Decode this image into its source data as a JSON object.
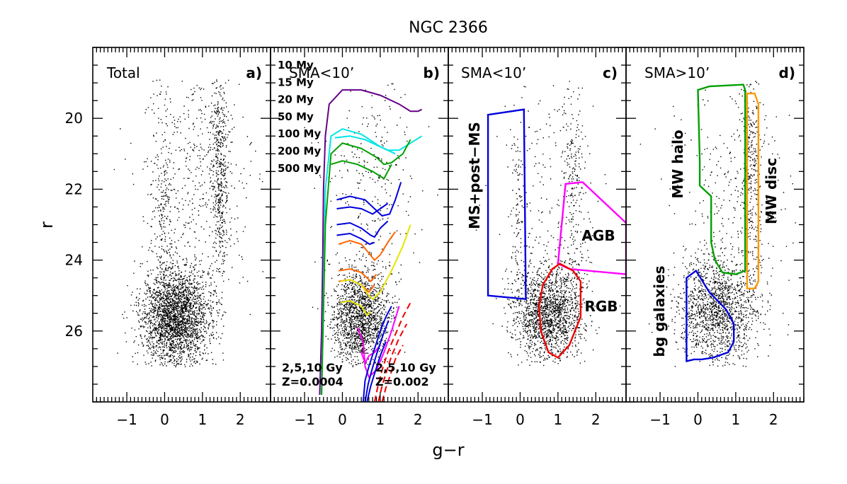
{
  "chart_data": {
    "type": "scatter",
    "title": "NGC 2366",
    "xlabel": "g−r",
    "ylabel": "r",
    "xlim": [
      -1.9,
      2.8
    ],
    "ylim": [
      28,
      18
    ],
    "x_ticks": [
      "−1",
      "0",
      "1",
      "2"
    ],
    "y_ticks": [
      "20",
      "22",
      "24",
      "26"
    ],
    "x_tick_values": [
      -1,
      0,
      1,
      2
    ],
    "y_tick_values": [
      20,
      22,
      24,
      26
    ],
    "panels": [
      {
        "id": "a",
        "region": "Total",
        "label": "a)",
        "points": [],
        "point_clouds": [
          {
            "name": "main_body",
            "x_mean": 0.3,
            "x_sd": 0.45,
            "y_mean": 25.6,
            "y_sd": 0.7,
            "count": 2600
          },
          {
            "name": "upper_ms",
            "x_mean": -0.05,
            "x_sd": 0.15,
            "y_mean": 22.5,
            "y_sd": 1.7,
            "count": 250
          },
          {
            "name": "red_plume",
            "x_mean": 1.45,
            "x_sd": 0.12,
            "y_mean": 21.5,
            "y_sd": 1.6,
            "count": 500
          },
          {
            "name": "sparse_field",
            "x_mean": 0.8,
            "x_sd": 0.7,
            "y_mean": 21.5,
            "y_sd": 1.8,
            "count": 450
          }
        ]
      },
      {
        "id": "b",
        "region": "SMA<10’",
        "label": "b)",
        "points": [],
        "point_clouds": [
          {
            "name": "main_body",
            "x_mean": 0.45,
            "x_sd": 0.38,
            "y_mean": 25.6,
            "y_sd": 0.65,
            "count": 1600
          },
          {
            "name": "sparse_field",
            "x_mean": 0.7,
            "x_sd": 0.6,
            "y_mean": 22.0,
            "y_sd": 1.8,
            "count": 300
          }
        ],
        "legend": [
          {
            "label": "10 My",
            "color": "#660088"
          },
          {
            "label": "15 My",
            "color": "#00e5e5"
          },
          {
            "label": "20 My",
            "color": "#00a000"
          },
          {
            "label": "50 My",
            "color": "#0000dd"
          },
          {
            "label": "100 My",
            "color": "#ff6600"
          },
          {
            "label": "200 My",
            "color": "#e5e500"
          },
          {
            "label": "500 My",
            "color": "#ff00ff"
          }
        ],
        "isochrones": [
          {
            "name": "10 My",
            "color": "#660088",
            "x": [
              -0.6,
              -0.55,
              -0.52,
              -0.5,
              -0.45,
              -0.35,
              0.0,
              0.5,
              1.0,
              1.5,
              1.8,
              2.0,
              2.1
            ],
            "y": [
              27.8,
              26.0,
              24.0,
              22.0,
              20.5,
              19.6,
              19.2,
              19.2,
              19.35,
              19.6,
              19.8,
              19.8,
              19.75
            ]
          },
          {
            "name": "15 My",
            "color": "#00e5e5",
            "x": [
              -0.55,
              -0.45,
              -0.3,
              0.0,
              0.5,
              1.0,
              1.2,
              1.5,
              1.8,
              2.1
            ],
            "y": [
              27.8,
              22.0,
              20.5,
              20.3,
              20.45,
              20.8,
              20.9,
              20.9,
              20.7,
              20.5
            ]
          },
          {
            "name": "15 My (loop)",
            "color": "#00e5e5",
            "x": [
              -0.2,
              0.2,
              0.6,
              1.0,
              1.4
            ],
            "y": [
              20.55,
              20.5,
              20.6,
              20.8,
              21.0
            ]
          },
          {
            "name": "20 My",
            "color": "#00a000",
            "x": [
              -0.55,
              -0.45,
              -0.3,
              0.0,
              0.5,
              0.9,
              1.1,
              1.3,
              1.6,
              1.8
            ],
            "y": [
              27.8,
              23.0,
              21.0,
              20.7,
              20.85,
              21.1,
              21.3,
              21.25,
              21.0,
              20.6
            ]
          },
          {
            "name": "20 My (loop)",
            "color": "#00a000",
            "x": [
              -0.3,
              0.0,
              0.4,
              0.8,
              1.1,
              1.3
            ],
            "y": [
              21.3,
              21.2,
              21.3,
              21.5,
              21.7,
              21.3
            ]
          },
          {
            "name": "50 My (a)",
            "color": "#0000dd",
            "x": [
              -0.15,
              0.2,
              0.6,
              0.9,
              1.05,
              1.25,
              1.4,
              1.55
            ],
            "y": [
              22.3,
              22.2,
              22.3,
              22.6,
              22.75,
              22.7,
              22.3,
              21.8
            ]
          },
          {
            "name": "50 My (b)",
            "color": "#0000dd",
            "x": [
              -0.15,
              0.2,
              0.5,
              0.8,
              1.0,
              1.2
            ],
            "y": [
              22.55,
              22.5,
              22.55,
              22.7,
              22.55,
              22.4
            ]
          },
          {
            "name": "50 My (c)",
            "color": "#0000dd",
            "x": [
              -0.15,
              0.2,
              0.5,
              0.75,
              0.85,
              1.0,
              1.2
            ],
            "y": [
              23.0,
              22.95,
              23.1,
              23.3,
              23.35,
              23.1,
              22.9
            ]
          },
          {
            "name": "50 My (d)",
            "color": "#0000dd",
            "x": [
              -0.15,
              0.2,
              0.5,
              0.72,
              0.85
            ],
            "y": [
              23.3,
              23.25,
              23.4,
              23.55,
              23.5
            ]
          },
          {
            "name": "100 My (a)",
            "color": "#ff6600",
            "x": [
              -0.1,
              0.2,
              0.5,
              0.7,
              0.85,
              1.0,
              1.2,
              1.4
            ],
            "y": [
              23.55,
              23.45,
              23.55,
              23.8,
              24.0,
              23.85,
              23.5,
              23.2
            ]
          },
          {
            "name": "100 My (b)",
            "color": "#ff6600",
            "x": [
              -0.1,
              0.2,
              0.5,
              0.75,
              0.9
            ],
            "y": [
              24.3,
              24.25,
              24.35,
              24.6,
              24.4
            ]
          },
          {
            "name": "100 My (c)",
            "color": "#ff6600",
            "x": [
              -0.1,
              0.2,
              0.5,
              0.7,
              0.85
            ],
            "y": [
              24.6,
              24.55,
              24.7,
              24.9,
              24.7
            ]
          },
          {
            "name": "200 My (a)",
            "color": "#e5e500",
            "x": [
              -0.05,
              0.2,
              0.5,
              0.7,
              0.8,
              1.0,
              1.3,
              1.6,
              1.8
            ],
            "y": [
              24.6,
              24.55,
              24.7,
              25.0,
              25.1,
              24.9,
              24.3,
              23.6,
              23.0
            ]
          },
          {
            "name": "200 My (b)",
            "color": "#e5e500",
            "x": [
              -0.05,
              0.2,
              0.5,
              0.65,
              0.75
            ],
            "y": [
              25.2,
              25.15,
              25.3,
              25.55,
              25.45
            ]
          },
          {
            "name": "500 My (a)",
            "color": "#ff00ff",
            "x": [
              0.4,
              0.55,
              0.6,
              0.7,
              0.9,
              1.1,
              1.3,
              1.5
            ],
            "y": [
              25.9,
              26.3,
              27.0,
              27.3,
              27.1,
              26.6,
              26.0,
              25.3
            ]
          },
          {
            "name": "500 My (b)",
            "color": "#ff00ff",
            "x": [
              0.5,
              0.6,
              0.7,
              0.85,
              1.0
            ],
            "y": [
              26.6,
              26.9,
              26.7,
              26.6,
              26.4
            ]
          },
          {
            "name": "2,5,10 Gy Z=0.0004 (a)",
            "color": "#0000dd",
            "x": [
              0.55,
              0.6,
              0.7,
              0.85,
              1.0,
              1.15,
              1.3
            ],
            "y": [
              28.0,
              27.4,
              27.0,
              26.5,
              26.0,
              25.6,
              25.3
            ]
          },
          {
            "name": "2,5,10 Gy Z=0.0004 (b)",
            "color": "#0000dd",
            "x": [
              0.6,
              0.68,
              0.78,
              0.92,
              1.08,
              1.22
            ],
            "y": [
              28.0,
              27.5,
              27.1,
              26.6,
              26.1,
              25.7
            ]
          },
          {
            "name": "2,5,10 Gy Z=0.0004 (c)",
            "color": "#0000dd",
            "x": [
              0.65,
              0.75,
              0.85,
              1.0,
              1.15
            ],
            "y": [
              28.0,
              27.55,
              27.2,
              26.7,
              26.3
            ]
          },
          {
            "name": "2,5,10 Gy Z=0.002 (a)",
            "color": "#ee0000",
            "dashed": true,
            "x": [
              0.85,
              0.95,
              1.05,
              1.2,
              1.4,
              1.6,
              1.8
            ],
            "y": [
              28.0,
              27.5,
              27.1,
              26.6,
              26.1,
              25.6,
              25.2
            ]
          },
          {
            "name": "2,5,10 Gy Z=0.002 (b)",
            "color": "#ee0000",
            "dashed": true,
            "x": [
              0.95,
              1.05,
              1.15,
              1.3,
              1.5,
              1.7
            ],
            "y": [
              28.0,
              27.55,
              27.2,
              26.7,
              26.2,
              25.8
            ]
          },
          {
            "name": "2,5,10 Gy Z=0.002 (c)",
            "color": "#ee0000",
            "dashed": true,
            "x": [
              1.05,
              1.15,
              1.25,
              1.4,
              1.6
            ],
            "y": [
              28.0,
              27.6,
              27.3,
              26.8,
              26.4
            ]
          }
        ],
        "notes": [
          {
            "lines": [
              "2,5,10 Gy",
              "Z=0.0004"
            ],
            "color": "#0000dd"
          },
          {
            "lines": [
              "2,5,10 Gy",
              "Z=0.002"
            ],
            "color": "#ee0000"
          }
        ]
      },
      {
        "id": "c",
        "region": "SMA<10’",
        "label": "c)",
        "points": [],
        "point_clouds": [
          {
            "name": "main_body",
            "x_mean": 0.7,
            "x_sd": 0.45,
            "y_mean": 25.5,
            "y_sd": 0.65,
            "count": 1700
          },
          {
            "name": "upper_ms",
            "x_mean": -0.05,
            "x_sd": 0.12,
            "y_mean": 22.5,
            "y_sd": 1.6,
            "count": 120
          },
          {
            "name": "red_plume",
            "x_mean": 1.4,
            "x_sd": 0.15,
            "y_mean": 21.8,
            "y_sd": 1.5,
            "count": 200
          },
          {
            "name": "sparse_field",
            "x_mean": 0.9,
            "x_sd": 0.7,
            "y_mean": 22.5,
            "y_sd": 1.7,
            "count": 200
          }
        ],
        "regions": [
          {
            "label": "MS+post−MS",
            "color": "#0000dd",
            "x": [
              -0.85,
              0.1,
              0.15,
              -0.85
            ],
            "y": [
              19.9,
              19.75,
              25.1,
              25.0
            ]
          },
          {
            "label": "AGB",
            "color": "#ff00ff",
            "x": [
              1.0,
              1.2,
              1.65,
              2.8,
              2.8,
              1.3,
              1.0
            ],
            "y": [
              24.1,
              21.85,
              21.8,
              22.95,
              24.4,
              24.25,
              24.1
            ]
          },
          {
            "label": "RGB",
            "color": "#ee0000",
            "x": [
              1.05,
              1.4,
              1.6,
              1.6,
              1.3,
              1.0,
              0.75,
              0.55,
              0.5,
              0.6,
              0.85,
              1.05
            ],
            "y": [
              24.1,
              24.3,
              24.6,
              25.6,
              26.4,
              26.75,
              26.6,
              26.0,
              25.3,
              24.7,
              24.25,
              24.1
            ]
          }
        ]
      },
      {
        "id": "d",
        "region": "SMA>10’",
        "label": "d)",
        "points": [],
        "point_clouds": [
          {
            "name": "main_body",
            "x_mean": 0.5,
            "x_sd": 0.55,
            "y_mean": 25.4,
            "y_sd": 0.75,
            "count": 1500
          },
          {
            "name": "red_plume",
            "x_mean": 1.4,
            "x_sd": 0.15,
            "y_mean": 21.5,
            "y_sd": 1.6,
            "count": 300
          },
          {
            "name": "sparse_field",
            "x_mean": 0.9,
            "x_sd": 0.75,
            "y_mean": 22.2,
            "y_sd": 1.9,
            "count": 300
          }
        ],
        "regions": [
          {
            "label": "MW halo",
            "color": "#00a000",
            "x": [
              0.0,
              0.3,
              1.2,
              1.25,
              1.25,
              1.0,
              0.65,
              0.45,
              0.35,
              0.35,
              0.05,
              0.05,
              0.0
            ],
            "y": [
              19.2,
              19.1,
              19.05,
              19.2,
              24.3,
              24.4,
              24.35,
              24.0,
              23.5,
              22.2,
              21.9,
              21.2,
              19.2
            ]
          },
          {
            "label": "MW disc",
            "color": "#ff9900",
            "x": [
              1.3,
              1.5,
              1.6,
              1.6,
              1.5,
              1.3,
              1.3
            ],
            "y": [
              19.3,
              19.3,
              19.6,
              24.6,
              24.8,
              24.8,
              19.3
            ]
          },
          {
            "label": "bg galaxies",
            "color": "#0000dd",
            "x": [
              -0.3,
              -0.1,
              0.1,
              0.4,
              0.8,
              0.95,
              0.95,
              0.75,
              0.3,
              -0.05,
              -0.3,
              -0.3
            ],
            "y": [
              26.85,
              26.8,
              26.8,
              26.75,
              26.6,
              26.3,
              25.8,
              25.4,
              24.9,
              24.3,
              24.5,
              26.85
            ]
          }
        ]
      }
    ]
  }
}
